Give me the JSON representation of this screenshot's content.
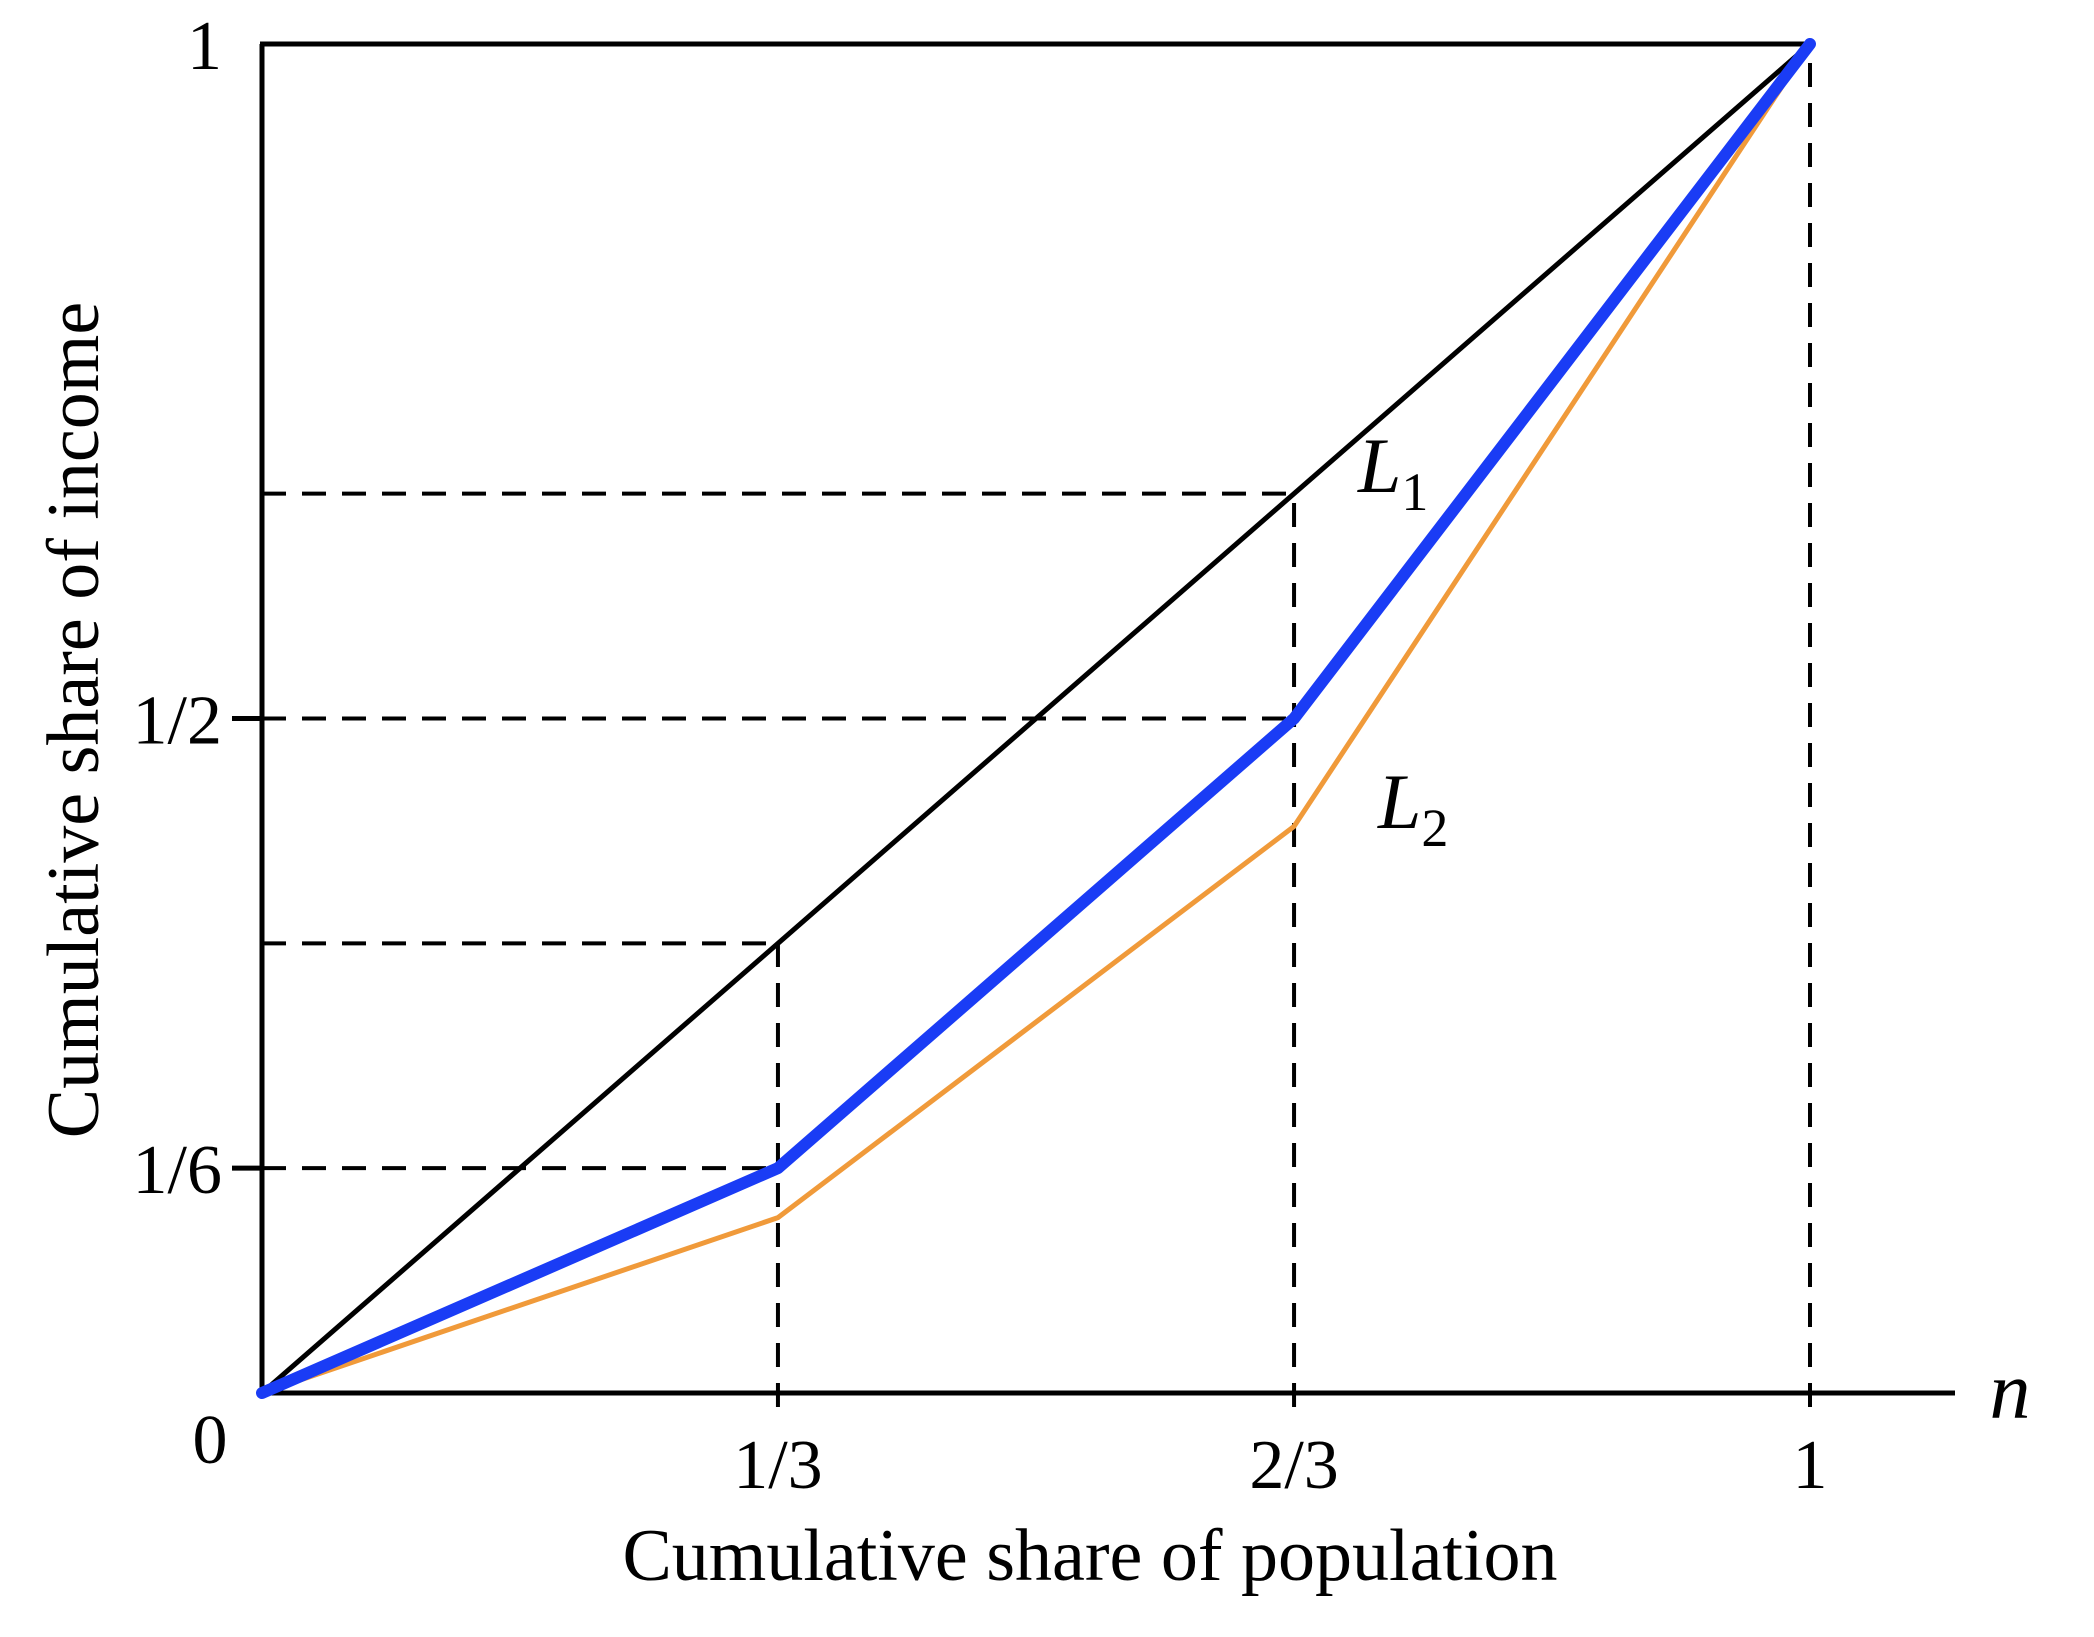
{
  "chart_data": {
    "type": "line",
    "xlabel": "Cumulative share of population",
    "ylabel": "Cumulative share of income",
    "x_axis_variable": "n",
    "xlim": [
      0,
      1
    ],
    "ylim": [
      0,
      1
    ],
    "grid": false,
    "origin_label": "0",
    "x_ticks": [
      {
        "value": 0.3333,
        "label": "1/3"
      },
      {
        "value": 0.6667,
        "label": "2/3"
      },
      {
        "value": 1,
        "label": "1"
      }
    ],
    "y_ticks": [
      {
        "value": 0.1667,
        "label": "1/6"
      },
      {
        "value": 0.5,
        "label": "1/2"
      },
      {
        "value": 1,
        "label": "1"
      }
    ],
    "guide_lines": {
      "vertical_x": [
        0.3333,
        0.6667,
        1
      ],
      "horizontal_y": [
        0.1667,
        0.3333,
        0.5,
        0.6667
      ],
      "style": "dashed"
    },
    "series": [
      {
        "id": "equality",
        "color": "#000000",
        "x": [
          0,
          1
        ],
        "y": [
          0,
          1
        ]
      },
      {
        "id": "L1",
        "label": "L",
        "label_subscript": "1",
        "color": "#1a3cf5",
        "x": [
          0,
          0.3333,
          0.6667,
          1
        ],
        "y": [
          0,
          0.1667,
          0.5,
          1
        ]
      },
      {
        "id": "L2",
        "label": "L",
        "label_subscript": "2",
        "color": "#f09a3a",
        "x": [
          0,
          0.3333,
          0.6667,
          1
        ],
        "y": [
          0,
          0.13,
          0.42,
          1
        ]
      }
    ]
  }
}
